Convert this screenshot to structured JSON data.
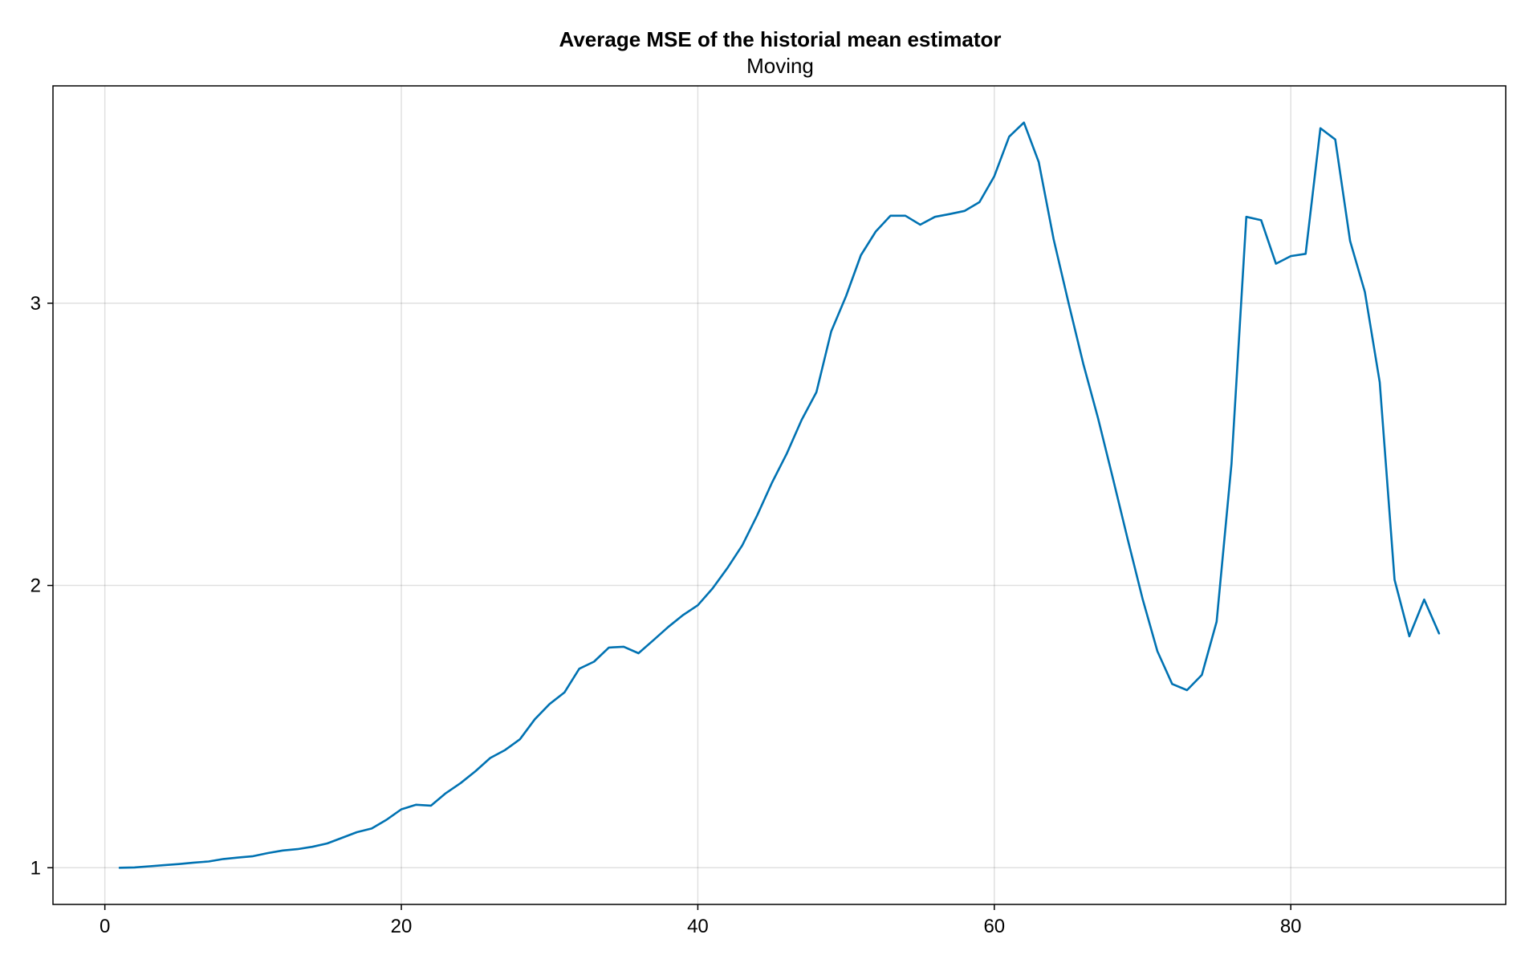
{
  "chart_data": {
    "type": "line",
    "title": "Average MSE of the historial mean estimator",
    "subtitle": "Moving",
    "xlabel": "",
    "ylabel": "",
    "xlim": [
      -3.5,
      94.5
    ],
    "ylim": [
      0.87,
      3.77
    ],
    "xticks": [
      0,
      20,
      40,
      60,
      80
    ],
    "yticks": [
      1,
      2,
      3
    ],
    "grid": true,
    "legend": "none",
    "colors": {
      "line": "#0072b2",
      "grid": "#e6e6e6",
      "frame": "#000000"
    },
    "series": [
      {
        "x": [
          1,
          2,
          3,
          4,
          5,
          6,
          7,
          8,
          9,
          10,
          11,
          12,
          13,
          14,
          15,
          16,
          17,
          18,
          19,
          20,
          21,
          22,
          23,
          24,
          25,
          26,
          27,
          28,
          29,
          30,
          31,
          32,
          33,
          34,
          35,
          36,
          37,
          38,
          39,
          40,
          41,
          42,
          43,
          44,
          45,
          46,
          47,
          48,
          49,
          50,
          51,
          52,
          53,
          54,
          55,
          56,
          57,
          58,
          59,
          60,
          61,
          62,
          63,
          64,
          65,
          66,
          67,
          68,
          69,
          70,
          71,
          72,
          73,
          74,
          75,
          76,
          77,
          78,
          79,
          80,
          81,
          82,
          83,
          84,
          85,
          86,
          87,
          88,
          89,
          90
        ],
        "values": [
          1.0,
          1.001,
          1.005,
          1.009,
          1.013,
          1.018,
          1.022,
          1.031,
          1.036,
          1.041,
          1.052,
          1.061,
          1.066,
          1.074,
          1.086,
          1.106,
          1.126,
          1.139,
          1.17,
          1.207,
          1.223,
          1.22,
          1.264,
          1.3,
          1.342,
          1.389,
          1.417,
          1.455,
          1.526,
          1.58,
          1.621,
          1.705,
          1.73,
          1.78,
          1.783,
          1.76,
          1.806,
          1.853,
          1.895,
          1.93,
          1.99,
          2.062,
          2.142,
          2.248,
          2.364,
          2.467,
          2.586,
          2.685,
          2.9,
          3.025,
          3.17,
          3.254,
          3.31,
          3.31,
          3.278,
          3.306,
          3.316,
          3.327,
          3.358,
          3.45,
          3.59,
          3.64,
          3.5,
          3.227,
          3.002,
          2.786,
          2.592,
          2.379,
          2.164,
          1.953,
          1.767,
          1.651,
          1.629,
          1.683,
          1.872,
          2.43,
          3.306,
          3.294,
          3.14,
          3.167,
          3.175,
          3.62,
          3.58,
          3.22,
          3.04,
          2.72,
          2.02,
          1.82,
          1.95,
          1.83
        ]
      }
    ]
  }
}
